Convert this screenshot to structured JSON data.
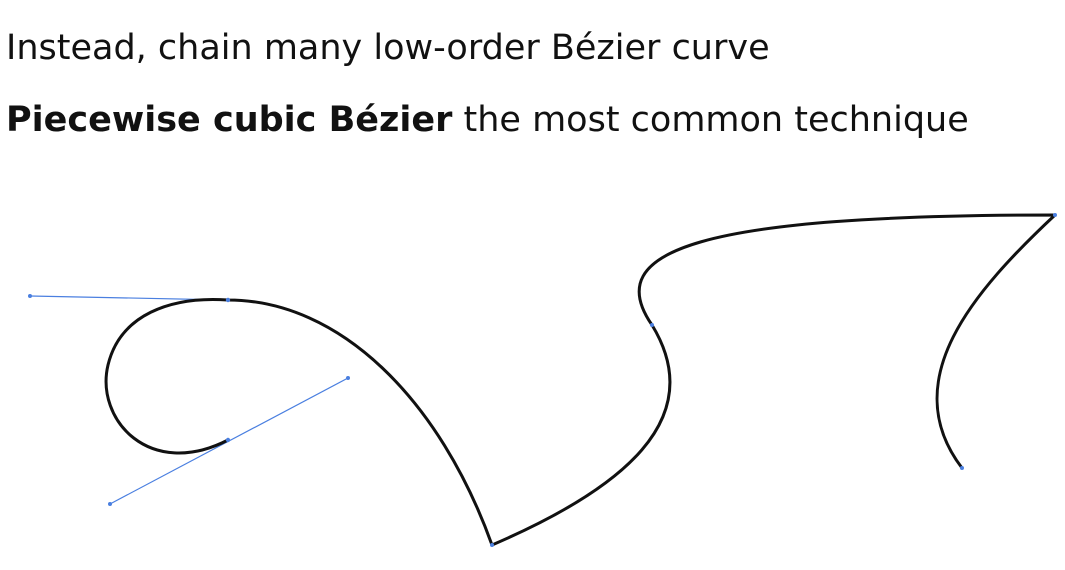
{
  "text": {
    "line1": "Instead, chain many low-order Bézier curve",
    "line2_bold": "Piecewise cubic Bézier",
    "line2_rest": " the most common technique"
  },
  "colors": {
    "curve": "#111111",
    "handle": "#4a7fe0",
    "handle_point": "#4a7fe0"
  }
}
